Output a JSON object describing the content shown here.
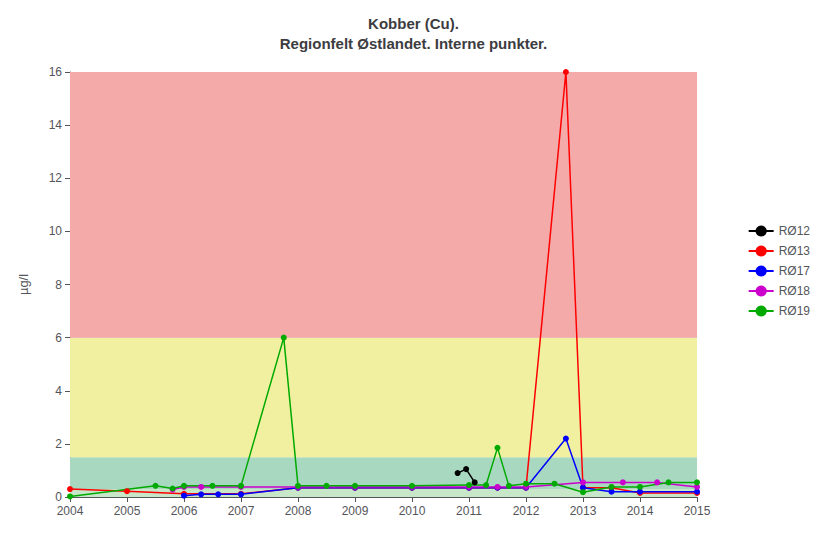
{
  "chart_data": {
    "type": "line",
    "title": "Kobber (Cu).\nRegionfelt Østlandet. Interne punkter.",
    "ylabel": "µg/l",
    "xlim": [
      2004,
      2015
    ],
    "ylim": [
      0,
      16
    ],
    "xticks": [
      2004,
      2005,
      2006,
      2007,
      2008,
      2009,
      2010,
      2011,
      2012,
      2013,
      2014,
      2015
    ],
    "yticks": [
      0,
      2,
      4,
      6,
      8,
      10,
      12,
      14,
      16
    ],
    "grid": true,
    "legend": "right",
    "marker": "circle",
    "bands": [
      {
        "ymin": 0,
        "ymax": 0.3,
        "color": "#c8e6c8"
      },
      {
        "ymin": 0.3,
        "ymax": 1.5,
        "color": "#a8d8c0"
      },
      {
        "ymin": 1.5,
        "ymax": 6.0,
        "color": "#f0f0a0"
      },
      {
        "ymin": 6.0,
        "ymax": 16,
        "color": "#f5aaaa"
      }
    ],
    "series": [
      {
        "name": "RØ12",
        "color": "#000000",
        "x": [
          2010.8,
          2010.95,
          2011.1
        ],
        "values": [
          0.9,
          1.05,
          0.55
        ]
      },
      {
        "name": "RØ13",
        "color": "#ff0000",
        "x": [
          2004.0,
          2005.0,
          2006.0,
          2007.0,
          2008.0,
          2009.0,
          2010.0,
          2011.0,
          2011.5,
          2012.0,
          2012.7,
          2013.0,
          2013.5,
          2014.0,
          2015.0
        ],
        "values": [
          0.3,
          0.22,
          0.12,
          0.12,
          0.35,
          0.35,
          0.35,
          0.35,
          0.35,
          0.35,
          16.0,
          0.35,
          0.35,
          0.15,
          0.15
        ]
      },
      {
        "name": "RØ17",
        "color": "#0000ff",
        "x": [
          2006.0,
          2006.3,
          2006.6,
          2007.0,
          2008.0,
          2009.0,
          2010.0,
          2011.0,
          2011.5,
          2012.0,
          2012.7,
          2013.0,
          2013.5,
          2014.0,
          2015.0
        ],
        "values": [
          0.05,
          0.1,
          0.1,
          0.1,
          0.35,
          0.35,
          0.35,
          0.35,
          0.35,
          0.35,
          2.2,
          0.35,
          0.2,
          0.2,
          0.2
        ]
      },
      {
        "name": "RØ18",
        "color": "#cc00cc",
        "x": [
          2005.8,
          2006.0,
          2006.3,
          2007.0,
          2008.0,
          2009.0,
          2010.0,
          2011.0,
          2011.5,
          2012.0,
          2013.0,
          2013.7,
          2014.3,
          2015.0
        ],
        "values": [
          0.28,
          0.38,
          0.38,
          0.38,
          0.38,
          0.38,
          0.38,
          0.38,
          0.38,
          0.38,
          0.55,
          0.55,
          0.55,
          0.38
        ]
      },
      {
        "name": "RØ19",
        "color": "#00aa00",
        "x": [
          2004.0,
          2005.5,
          2005.8,
          2006.0,
          2006.5,
          2007.0,
          2007.75,
          2008.0,
          2008.5,
          2009.0,
          2010.0,
          2011.0,
          2011.3,
          2011.5,
          2011.7,
          2012.0,
          2012.5,
          2013.0,
          2013.5,
          2014.0,
          2014.5,
          2015.0
        ],
        "values": [
          0.02,
          0.42,
          0.32,
          0.42,
          0.42,
          0.42,
          6.0,
          0.42,
          0.42,
          0.42,
          0.42,
          0.45,
          0.45,
          1.85,
          0.42,
          0.5,
          0.5,
          0.18,
          0.38,
          0.38,
          0.55,
          0.55
        ]
      }
    ]
  }
}
